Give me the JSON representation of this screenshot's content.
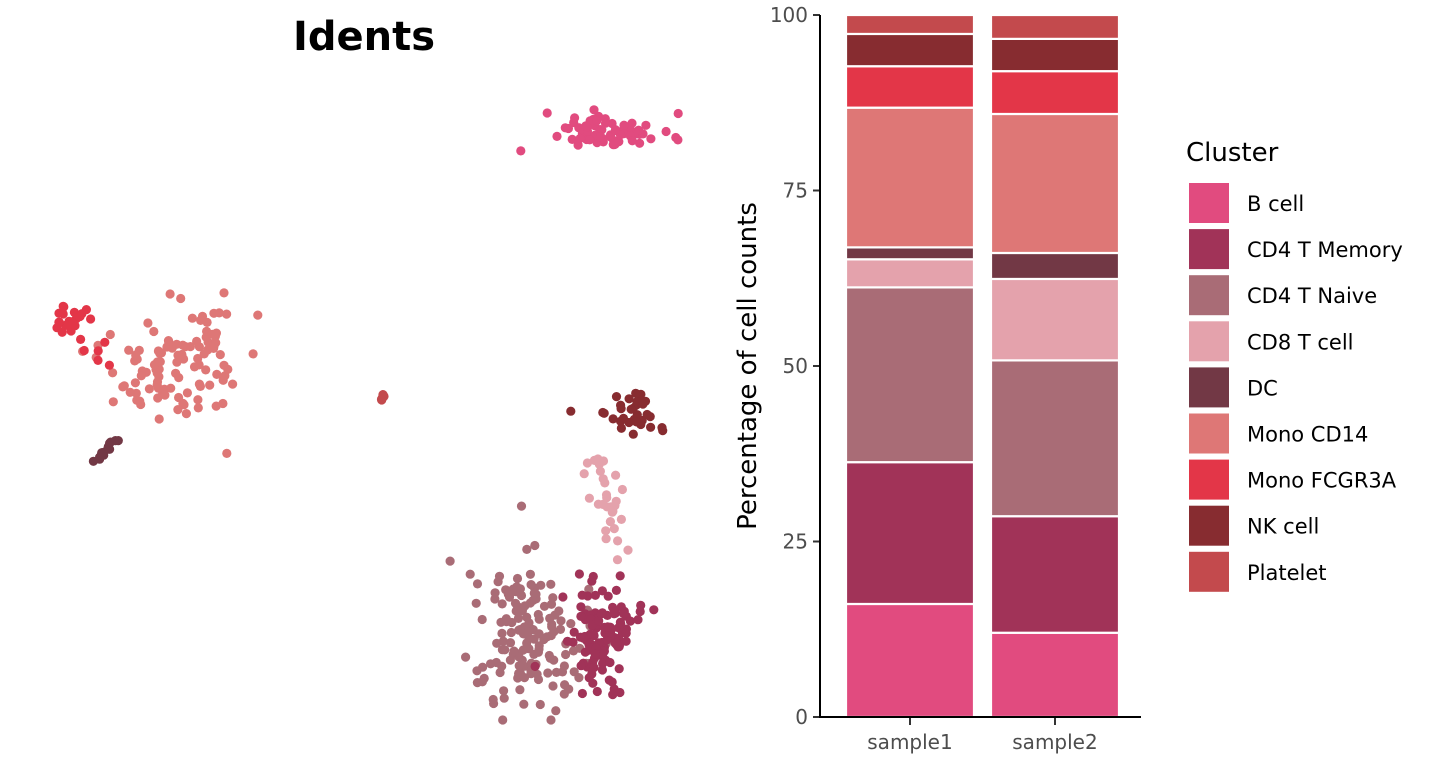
{
  "chart_data": [
    {
      "type": "scatter",
      "title": "Idents",
      "xlabel": "",
      "ylabel": "",
      "axes_visible": false,
      "color_by": "Cluster",
      "clusters_shown": [
        "B cell",
        "CD4 T Memory",
        "CD4 T Naive",
        "CD8 T cell",
        "DC",
        "Mono CD14",
        "Mono FCGR3A",
        "NK cell",
        "Platelet"
      ]
    },
    {
      "type": "bar",
      "stacked": true,
      "title": "",
      "xlabel": "",
      "ylabel": "Percentage of cell counts",
      "ylim": [
        0,
        100
      ],
      "yticks": [
        "0",
        "25",
        "50",
        "75",
        "100"
      ],
      "categories": [
        "sample1",
        "sample2"
      ],
      "series": [
        {
          "name": "B cell",
          "values": [
            16.1,
            12.0
          ]
        },
        {
          "name": "CD4 T Memory",
          "values": [
            20.2,
            16.6
          ]
        },
        {
          "name": "CD4 T Naive",
          "values": [
            24.9,
            22.2
          ]
        },
        {
          "name": "CD8 T cell",
          "values": [
            4.0,
            11.6
          ]
        },
        {
          "name": "DC",
          "values": [
            1.7,
            3.7
          ]
        },
        {
          "name": "Mono CD14",
          "values": [
            19.9,
            19.8
          ]
        },
        {
          "name": "Mono FCGR3A",
          "values": [
            5.9,
            6.1
          ]
        },
        {
          "name": "NK cell",
          "values": [
            4.6,
            4.6
          ]
        },
        {
          "name": "Platelet",
          "values": [
            2.7,
            3.4
          ]
        }
      ],
      "legend": {
        "title": "Cluster",
        "position": "right"
      },
      "grid": false
    }
  ],
  "colors": {
    "B cell": "#E14B7F",
    "CD4 T Memory": "#A13358",
    "CD4 T Naive": "#A96C76",
    "CD8 T cell": "#E4A2AC",
    "DC": "#723845",
    "Mono CD14": "#DE7776",
    "Mono FCGR3A": "#E33648",
    "NK cell": "#872C30",
    "Platelet": "#C34A4D"
  }
}
